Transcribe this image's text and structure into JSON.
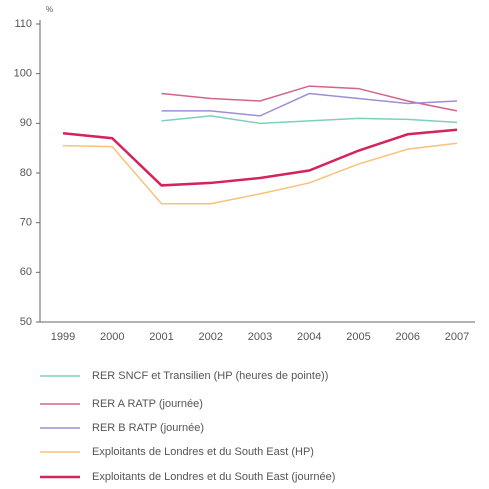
{
  "chart_data": {
    "type": "line",
    "y_axis_label": "%",
    "categories": [
      "1999",
      "2000",
      "2001",
      "2002",
      "2003",
      "2004",
      "2005",
      "2006",
      "2007"
    ],
    "series": [
      {
        "name": "RER SNCF et Transilien (HP (heures de pointe))",
        "color": "#7ecfc0",
        "values": [
          null,
          null,
          90.5,
          91.5,
          90,
          90.5,
          91,
          90.8,
          90.2
        ]
      },
      {
        "name": "RER A RATP  (journée)",
        "color": "#d4638a",
        "values": [
          null,
          null,
          96,
          95,
          94.5,
          97.5,
          97,
          94.5,
          92.5
        ]
      },
      {
        "name": "RER B RATP (journée)",
        "color": "#9b8fd6",
        "values": [
          null,
          null,
          92.5,
          92.5,
          91.5,
          96,
          95,
          94,
          94.5
        ]
      },
      {
        "name": "Exploitants de Londres et du  South East (HP)",
        "color": "#f7c27a",
        "values": [
          85.5,
          85.3,
          73.8,
          73.8,
          75.8,
          78,
          81.8,
          84.8,
          86
        ]
      },
      {
        "name": "Exploitants de Londres et du  South East (journée)",
        "color": "#d4245a",
        "values": [
          88,
          87,
          77.5,
          78,
          79,
          80.5,
          84.5,
          87.8,
          88.7
        ]
      }
    ],
    "ylim": [
      50,
      110
    ],
    "yticks": [
      50,
      60,
      70,
      80,
      90,
      100,
      110
    ]
  }
}
